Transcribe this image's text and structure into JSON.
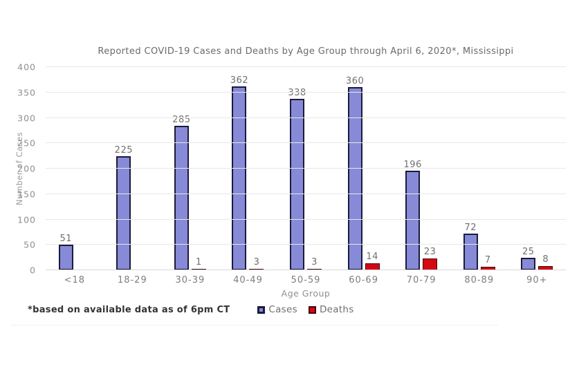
{
  "chart_data": {
    "type": "bar",
    "title": "Reported COVID-19 Cases and Deaths by Age Group through April 6, 2020*, Mississippi",
    "xlabel": "Age Group",
    "ylabel": "Number of Cases",
    "ylim": [
      0,
      400
    ],
    "yticks": [
      0,
      50,
      100,
      150,
      200,
      250,
      300,
      350,
      400
    ],
    "grid": true,
    "legend_position": "bottom-center",
    "categories": [
      "<18",
      "18-29",
      "30-39",
      "40-49",
      "50-59",
      "60-69",
      "70-79",
      "80-89",
      "90+"
    ],
    "series": [
      {
        "name": "Cases",
        "fill": "#878ad6",
        "border": "#1a1a3e",
        "values": [
          51,
          225,
          285,
          362,
          338,
          360,
          196,
          72,
          25
        ]
      },
      {
        "name": "Deaths",
        "fill": "#d50713",
        "border": "#3c060b",
        "values": [
          null,
          null,
          1,
          3,
          3,
          14,
          23,
          7,
          8
        ]
      }
    ]
  },
  "footnote": "*based on available data as of 6pm CT",
  "colors": {
    "grid": "#e7e7e7",
    "zero_line": "#d9d9d9",
    "axis_text": "#8f8f8f",
    "value_text": "#6f6f6f",
    "title_text": "#6a6a6a",
    "footnote_text": "#333333"
  }
}
